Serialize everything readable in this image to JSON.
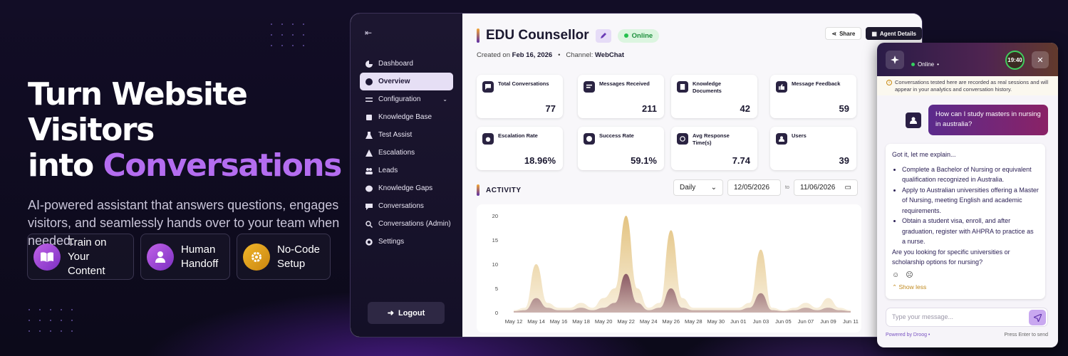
{
  "hero": {
    "title_line1": "Turn Website Visitors",
    "title_into": "into",
    "title_accent": "Conversations",
    "subtitle": "AI-powered assistant that answers questions, engages visitors, and seamlessly hands over to your team when needed."
  },
  "features": [
    {
      "label": "Train on Your Content",
      "icon": "book-icon",
      "color": "#a34fd4"
    },
    {
      "label": "Human Handoff",
      "icon": "user-icon",
      "color": "#a34fd4"
    },
    {
      "label": "No-Code Setup",
      "icon": "gear-icon",
      "color": "#e0a21b"
    }
  ],
  "sidebar": {
    "items": [
      {
        "label": "Dashboard",
        "icon": "pie-chart-icon"
      },
      {
        "label": "Overview",
        "icon": "gauge-icon",
        "active": true
      },
      {
        "label": "Configuration",
        "icon": "sliders-icon",
        "expandable": true
      },
      {
        "label": "Knowledge Base",
        "icon": "book-icon"
      },
      {
        "label": "Test Assist",
        "icon": "flask-icon"
      },
      {
        "label": "Escalations",
        "icon": "warning-icon"
      },
      {
        "label": "Leads",
        "icon": "users-icon"
      },
      {
        "label": "Knowledge Gaps",
        "icon": "brain-icon"
      },
      {
        "label": "Conversations",
        "icon": "chat-icon"
      },
      {
        "label": "Conversations (Admin)",
        "icon": "search-chat-icon"
      },
      {
        "label": "Settings",
        "icon": "gear-icon"
      }
    ],
    "logout": "Logout"
  },
  "header": {
    "title": "EDU Counsellor",
    "status": "Online",
    "created_label": "Created on",
    "created_date": "Feb 16, 2026",
    "channel_label": "Channel:",
    "channel": "WebChat",
    "share": "Share",
    "agent_details": "Agent Details"
  },
  "stats": [
    {
      "label": "Total Conversations",
      "value": "77"
    },
    {
      "label": "Messages Received",
      "value": "211"
    },
    {
      "label": "Knowledge Documents",
      "value": "42"
    },
    {
      "label": "Message Feedback",
      "value": "59"
    },
    {
      "label": "Escalation Rate",
      "value": "18.96%"
    },
    {
      "label": "Success Rate",
      "value": "59.1%"
    },
    {
      "label": "Avg Response Time(s)",
      "value": "7.74"
    },
    {
      "label": "Users",
      "value": "39"
    }
  ],
  "activity": {
    "title": "ACTIVITY",
    "period": "Daily",
    "date_from": "12/05/2026",
    "to": "to",
    "date_to": "11/06/2026"
  },
  "chart_data": {
    "type": "area",
    "x": [
      "May 12",
      "May 13",
      "May 14",
      "May 15",
      "May 16",
      "May 17",
      "May 18",
      "May 19",
      "May 20",
      "May 21",
      "May 22",
      "May 23",
      "May 24",
      "May 25",
      "May 26",
      "May 27",
      "May 28",
      "May 29",
      "May 30",
      "May 31",
      "Jun 01",
      "Jun 02",
      "Jun 03",
      "Jun 04",
      "Jun 05",
      "Jun 06",
      "Jun 07",
      "Jun 08",
      "Jun 09",
      "Jun 10",
      "Jun 11"
    ],
    "xticks": [
      "May 12",
      "May 14",
      "May 16",
      "May 18",
      "May 20",
      "May 22",
      "May 24",
      "May 26",
      "May 28",
      "May 30",
      "Jun 01",
      "Jun 03",
      "Jun 05",
      "Jun 07",
      "Jun 09",
      "Jun 11"
    ],
    "series": [
      {
        "values": [
          0.5,
          1,
          10,
          2,
          1,
          1,
          2,
          1,
          3,
          5,
          20,
          5,
          1,
          2,
          17,
          3,
          1,
          1,
          1,
          1,
          1,
          2,
          13,
          1,
          0.5,
          1,
          2,
          1,
          3,
          1,
          0.5
        ],
        "color": "#e2c07a"
      },
      {
        "values": [
          0.3,
          0.5,
          3,
          1,
          0.5,
          0.5,
          1,
          0.5,
          1,
          2,
          8,
          2,
          0.5,
          1,
          5,
          1,
          0.5,
          0.5,
          0.5,
          0.5,
          0.5,
          1,
          4,
          0.5,
          0.3,
          0.5,
          1,
          0.5,
          1,
          0.5,
          0.3
        ],
        "color": "#7a4458"
      }
    ],
    "ylim": [
      0,
      20
    ],
    "yticks": [
      0,
      5,
      10,
      15,
      20
    ],
    "grid": false
  },
  "chat": {
    "status": "Online",
    "timer": "19:40",
    "notice": "Conversations tested here are recorded as real sessions and will appear in your analytics and conversation history.",
    "user_msg": "How can I study masters in nursing in australia?",
    "bot_intro": "Got it, let me explain...",
    "bot_points": [
      "Complete a Bachelor of Nursing or equivalent qualification recognized in Australia.",
      "Apply to Australian universities offering a Master of Nursing, meeting English and academic requirements.",
      "Obtain a student visa, enroll, and after graduation, register with AHPRA to practice as a nurse."
    ],
    "bot_question": "Are you looking for specific universities or scholarship options for nursing?",
    "show_less": "Show less",
    "placeholder": "Type your message...",
    "powered_by": "Powered by Droog",
    "hint": "Press Enter to send"
  }
}
